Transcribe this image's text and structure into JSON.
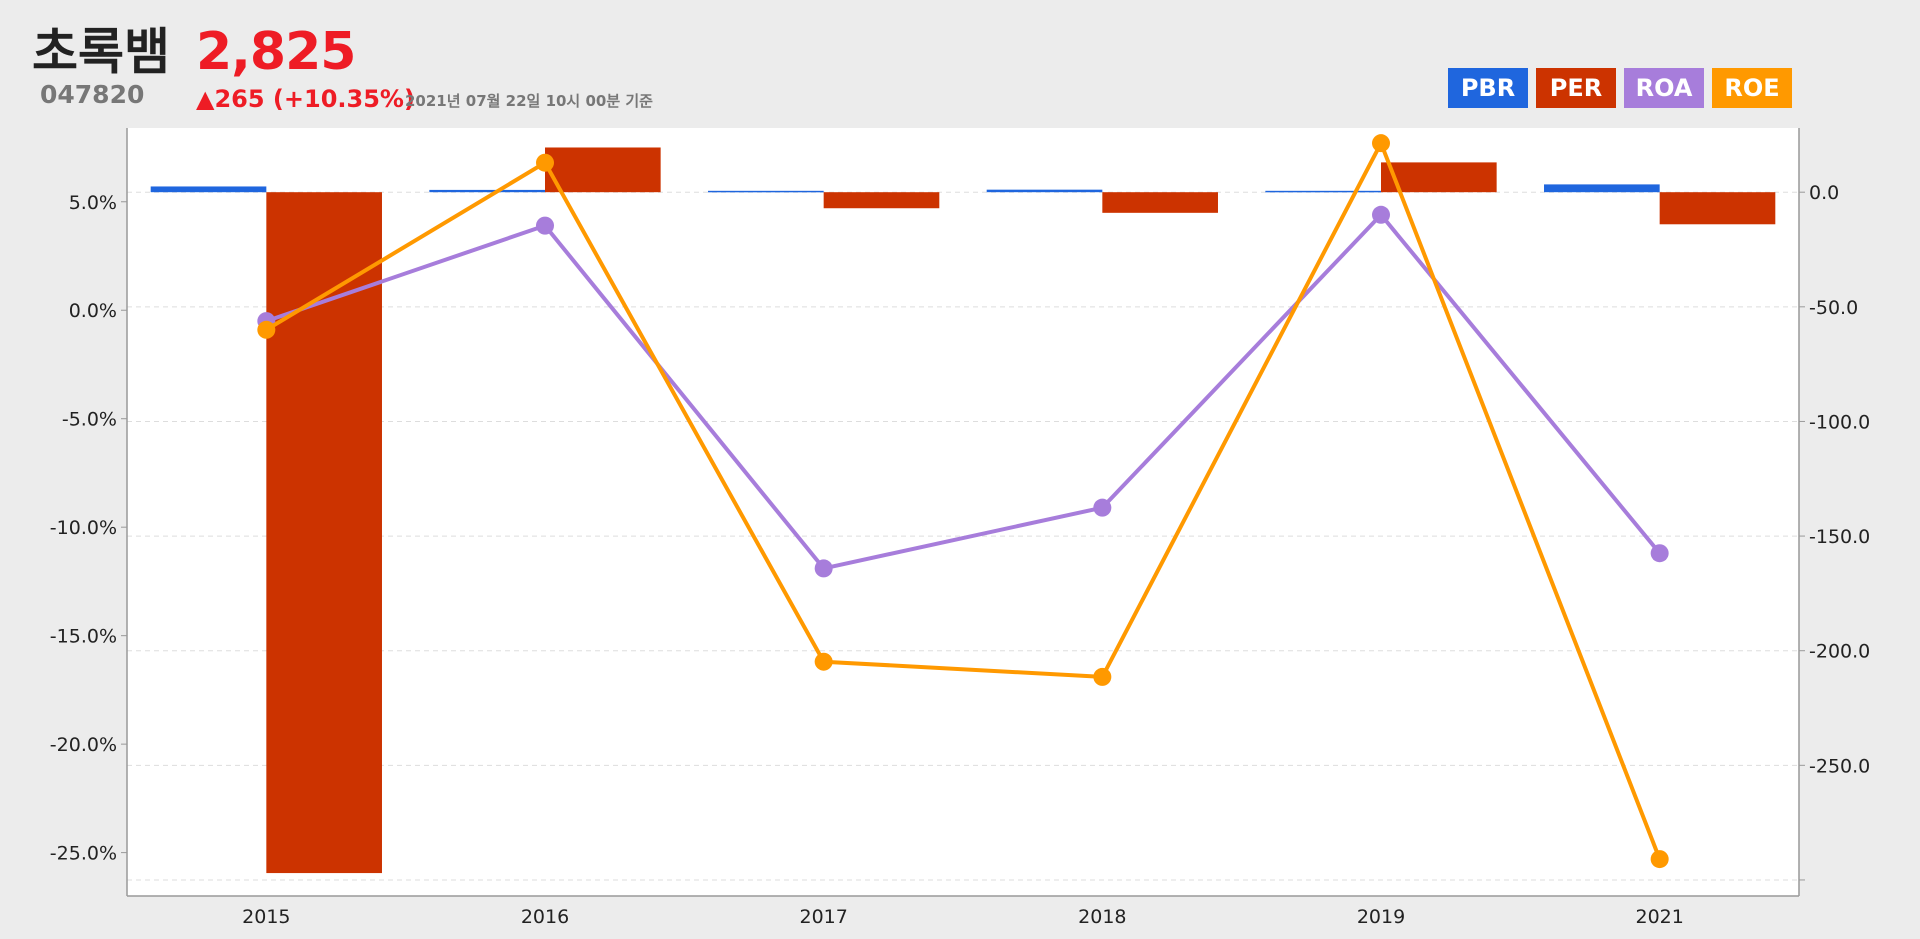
{
  "header": {
    "name": "초록뱀",
    "price": "2,825",
    "code": "047820",
    "change": "▲265 (+10.35%)",
    "timestamp": "2021년 07월 22일 10시 00분 기준"
  },
  "legend": [
    {
      "label": "PBR",
      "color": "#1f66de"
    },
    {
      "label": "PER",
      "color": "#cc3300"
    },
    {
      "label": "ROA",
      "color": "#a77ddb"
    },
    {
      "label": "ROE",
      "color": "#ff9900"
    }
  ],
  "chart_data": {
    "type": "bar",
    "categories": [
      "2015",
      "2016",
      "2017",
      "2018",
      "2019",
      "2021"
    ],
    "left_axis": {
      "range": [
        -27.0,
        8.4
      ],
      "ticks": [
        5.0,
        0.0,
        -5.0,
        -10.0,
        -15.0,
        -20.0,
        -25.0
      ],
      "tick_labels": [
        "5.0%",
        "0.0%",
        "-5.0%",
        "-10.0%",
        "-15.0%",
        "-20.0%",
        "-25.0%"
      ]
    },
    "right_axis": {
      "range": [
        -307.0,
        28.0
      ],
      "ticks": [
        0,
        -50,
        -100,
        -150,
        -200,
        -250,
        -300
      ],
      "tick_labels": [
        "0.0",
        "-50.0",
        "-100.0",
        "-150.0",
        "-200.0",
        "-250.0",
        ""
      ]
    },
    "grid": "horizontal dashed",
    "legend_position": "top-right",
    "series": [
      {
        "name": "PBR",
        "type": "bar",
        "axis": "right",
        "color": "#1f66de",
        "values": [
          2.5,
          1.0,
          0.6,
          1.1,
          0.6,
          3.4
        ]
      },
      {
        "name": "PER",
        "type": "bar",
        "axis": "right",
        "color": "#cc3300",
        "values": [
          -297.0,
          19.5,
          -7.0,
          -9.0,
          13.0,
          -14.0
        ]
      },
      {
        "name": "ROA",
        "type": "line",
        "axis": "left",
        "color": "#a77ddb",
        "values": [
          -0.5,
          3.9,
          -11.9,
          -9.1,
          4.4,
          -11.2
        ]
      },
      {
        "name": "ROE",
        "type": "line",
        "axis": "left",
        "color": "#ff9900",
        "values": [
          -0.9,
          6.8,
          -16.2,
          -16.9,
          7.7,
          -25.3
        ]
      }
    ]
  }
}
